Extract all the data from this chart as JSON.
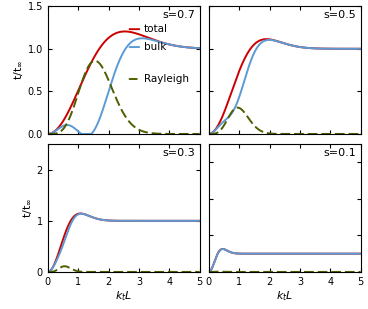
{
  "panels": [
    {
      "s": 0.7,
      "label": "s=0.7",
      "ylim": [
        0,
        1.5
      ],
      "yticks": [
        0.0,
        0.5,
        1.0,
        1.5
      ],
      "show_legend": true,
      "total_params": {
        "sigma": 2.0,
        "Pt": 0.38,
        "Gt": 0.28
      },
      "rayleigh_params": {
        "Ar": 1.1,
        "kLp": 1.55
      },
      "show_ylabel": true,
      "show_xlabel": false
    },
    {
      "s": 0.5,
      "label": "s=0.5",
      "ylim": [
        0,
        1.5
      ],
      "yticks": [
        0.0,
        0.5,
        1.0,
        1.5
      ],
      "show_legend": false,
      "total_params": {
        "sigma": 1.3,
        "Pt": 0.52,
        "Gt": 0.58
      },
      "rayleigh_params": {
        "Ar": 2.8,
        "kLp": 0.95
      },
      "show_ylabel": false,
      "show_xlabel": false
    },
    {
      "s": 0.3,
      "label": "s=0.3",
      "ylim": [
        0,
        2.5
      ],
      "yticks": [
        0,
        1,
        2
      ],
      "show_legend": false,
      "total_params": {
        "sigma": 0.72,
        "Pt": 1.55,
        "Gt": 1.7
      },
      "rayleigh_params": {
        "Ar": 9.0,
        "kLp": 0.55
      },
      "show_ylabel": true,
      "show_xlabel": true
    },
    {
      "s": 0.1,
      "label": "s=0.1",
      "ylim": [
        0,
        7
      ],
      "yticks": [
        0,
        2,
        4,
        6
      ],
      "show_legend": false,
      "total_params": {
        "sigma": 0.28,
        "Pt": 7.5,
        "Gt": 7.5
      },
      "rayleigh_params": {
        "Ar": 15.0,
        "kLp": 0.28
      },
      "show_ylabel": false,
      "show_xlabel": true
    }
  ],
  "xlim": [
    0,
    5
  ],
  "xticks": [
    0,
    1,
    2,
    3,
    4,
    5
  ],
  "color_total": "#cc0000",
  "color_bulk": "#5b9bd5",
  "color_rayleigh": "#4f5e00",
  "bg_color": "#ffffff",
  "figsize": [
    3.68,
    3.09
  ],
  "dpi": 100,
  "linewidth": 1.4
}
